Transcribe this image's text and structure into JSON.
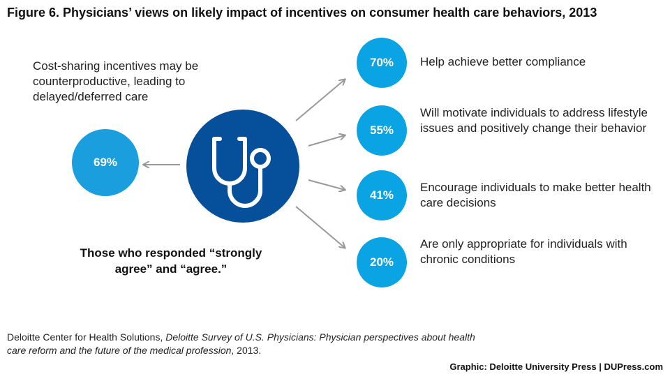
{
  "title": "Figure 6. Physicians’ views on likely impact of incentives on consumer health care behaviors, 2013",
  "left": {
    "text": "Cost-sharing incentives may be counterproductive, leading to delayed/deferred care",
    "value": "69%"
  },
  "center_icon": "stethoscope-icon",
  "items": [
    {
      "value": "70%",
      "label": "Help achieve better compliance"
    },
    {
      "value": "55%",
      "label": "Will motivate individuals to address lifestyle issues and positively change their behavior"
    },
    {
      "value": "41%",
      "label": "Encourage individuals to make better health care decisions"
    },
    {
      "value": "20%",
      "label": "Are only appropriate for individuals with chronic conditions"
    }
  ],
  "note": "Those who responded “strongly agree” and “agree.”",
  "source": {
    "prefix": "Deloitte Center for Health Solutions, ",
    "italic": "Deloitte Survey of U.S. Physicians: Physician perspectives about health care reform and the future of the medical profession",
    "suffix": ", 2013."
  },
  "credit": "Graphic: Deloitte University Press  |  DUPress.com",
  "colors": {
    "dark_blue": "#064f9a",
    "light_blue": "#0aa3e3",
    "arrow_gray": "#999999"
  }
}
